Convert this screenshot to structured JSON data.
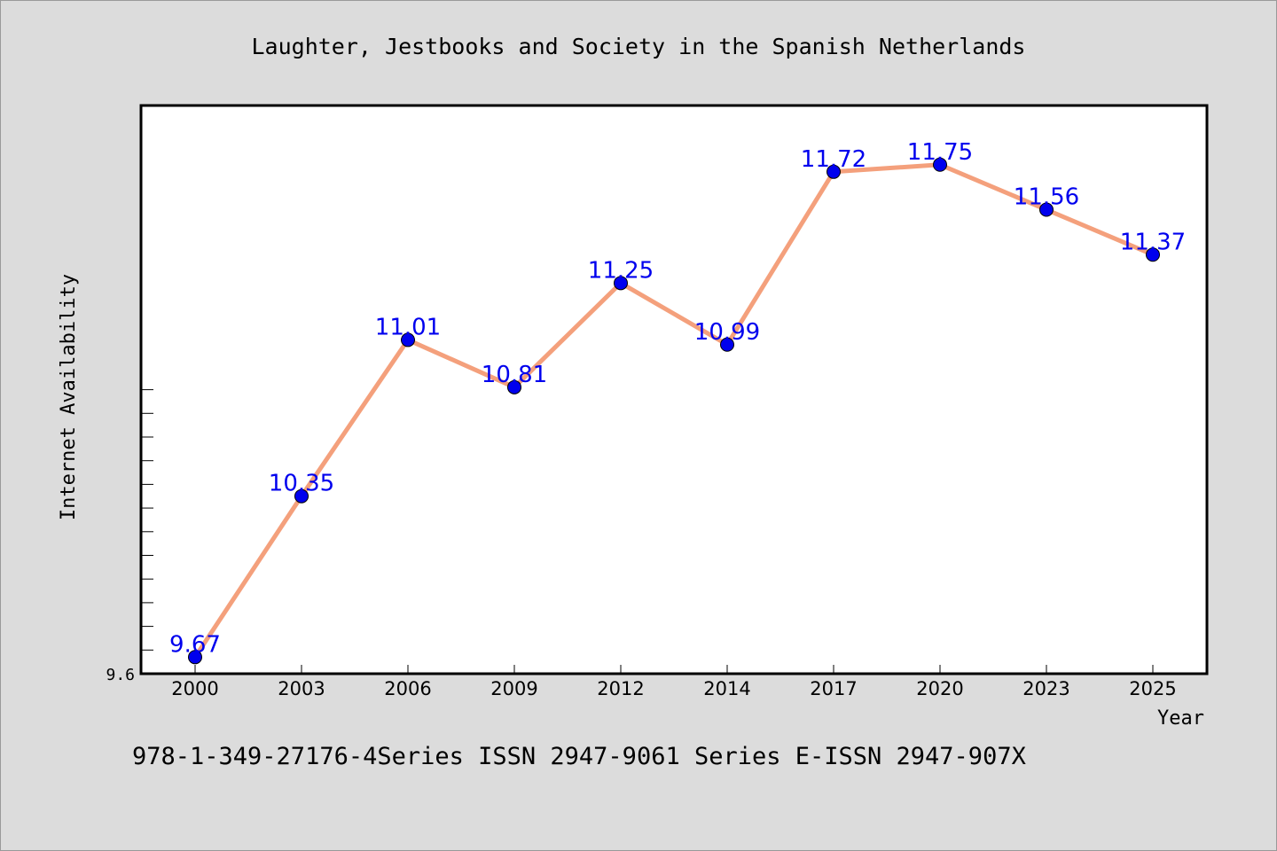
{
  "chart_data": {
    "type": "line",
    "title": "Laughter, Jestbooks and Society in the Spanish Netherlands",
    "xlabel": "Year",
    "ylabel": "Internet Availability",
    "categories": [
      "2000",
      "2003",
      "2006",
      "2009",
      "2012",
      "2014",
      "2017",
      "2020",
      "2023",
      "2025"
    ],
    "values": [
      9.67,
      10.35,
      11.01,
      10.81,
      11.25,
      10.99,
      11.72,
      11.75,
      11.56,
      11.37
    ],
    "data_labels": [
      "9.67",
      "10.35",
      "11.01",
      "10.81",
      "11.25",
      "10.99",
      "11.72",
      "11.75",
      "11.56",
      "11.37"
    ],
    "ylim": [
      9.6,
      12.0
    ],
    "y_tick_labels": [
      "9.6"
    ],
    "grid": false,
    "legend": "none",
    "line_color": "#f4a07c",
    "marker_color": "#0000ee",
    "label_color": "#0000ee"
  },
  "footer": {
    "text": "978-1-349-27176-4Series ISSN 2947-9061 Series E-ISSN 2947-907X"
  }
}
